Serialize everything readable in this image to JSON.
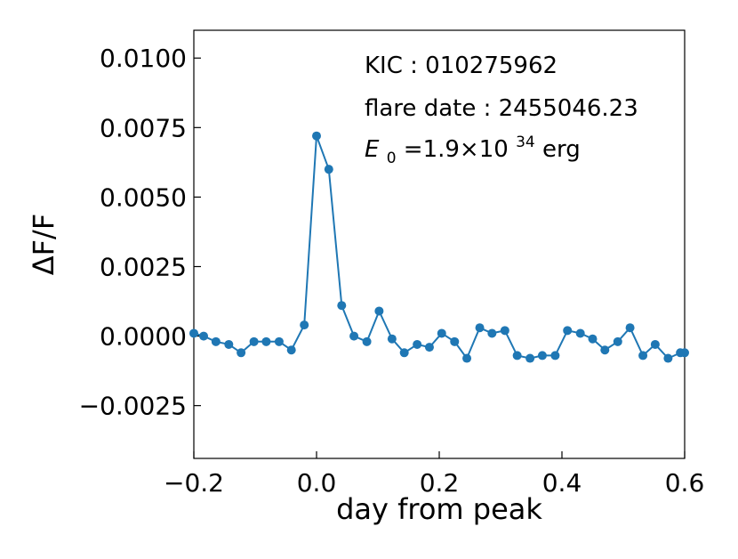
{
  "chart_data": {
    "type": "line",
    "xlabel": "day from peak",
    "ylabel": "ΔF/F",
    "xlim": [
      -0.2,
      0.6
    ],
    "ylim": [
      -0.0044,
      0.011
    ],
    "xticks": [
      -0.2,
      0.0,
      0.2,
      0.4,
      0.6
    ],
    "xtick_labels": [
      "−0.2",
      "0.0",
      "0.2",
      "0.4",
      "0.6"
    ],
    "yticks": [
      -0.0025,
      0.0,
      0.0025,
      0.005,
      0.0075,
      0.01
    ],
    "ytick_labels": [
      "−0.0025",
      "0.0000",
      "0.0025",
      "0.0050",
      "0.0075",
      "0.0100"
    ],
    "grid": false,
    "line_color": "#1f77b4",
    "annotations": {
      "kic": "KIC : 010275962",
      "flare_date": "flare date : 2455046.23",
      "energy_symbol": "E",
      "energy_sub": "0",
      "energy_value": "=1.9×10",
      "energy_exp": "34",
      "energy_unit": "erg"
    },
    "series": [
      {
        "x": [
          -0.2,
          -0.184,
          -0.164,
          -0.143,
          -0.123,
          -0.102,
          -0.082,
          -0.061,
          -0.041,
          -0.02,
          0.0,
          0.02,
          0.041,
          0.061,
          0.082,
          0.102,
          0.123,
          0.143,
          0.164,
          0.184,
          0.204,
          0.225,
          0.245,
          0.266,
          0.286,
          0.307,
          0.327,
          0.348,
          0.368,
          0.389,
          0.409,
          0.43,
          0.45,
          0.47,
          0.491,
          0.511,
          0.532,
          0.552,
          0.573,
          0.593,
          0.6
        ],
        "y": [
          0.0001,
          0.0,
          -0.0002,
          -0.0003,
          -0.0006,
          -0.0002,
          -0.0002,
          -0.0002,
          -0.0005,
          0.0004,
          0.0072,
          0.006,
          0.0011,
          0.0,
          -0.0002,
          0.0009,
          -0.0001,
          -0.0006,
          -0.0003,
          -0.0004,
          0.0001,
          -0.0002,
          -0.0008,
          0.0003,
          0.0001,
          0.0002,
          -0.0007,
          -0.0008,
          -0.0007,
          -0.0007,
          0.0002,
          0.0001,
          -0.0001,
          -0.0005,
          -0.0002,
          0.0003,
          -0.0007,
          -0.0003,
          -0.0008,
          -0.0006,
          -0.0006
        ]
      }
    ]
  }
}
